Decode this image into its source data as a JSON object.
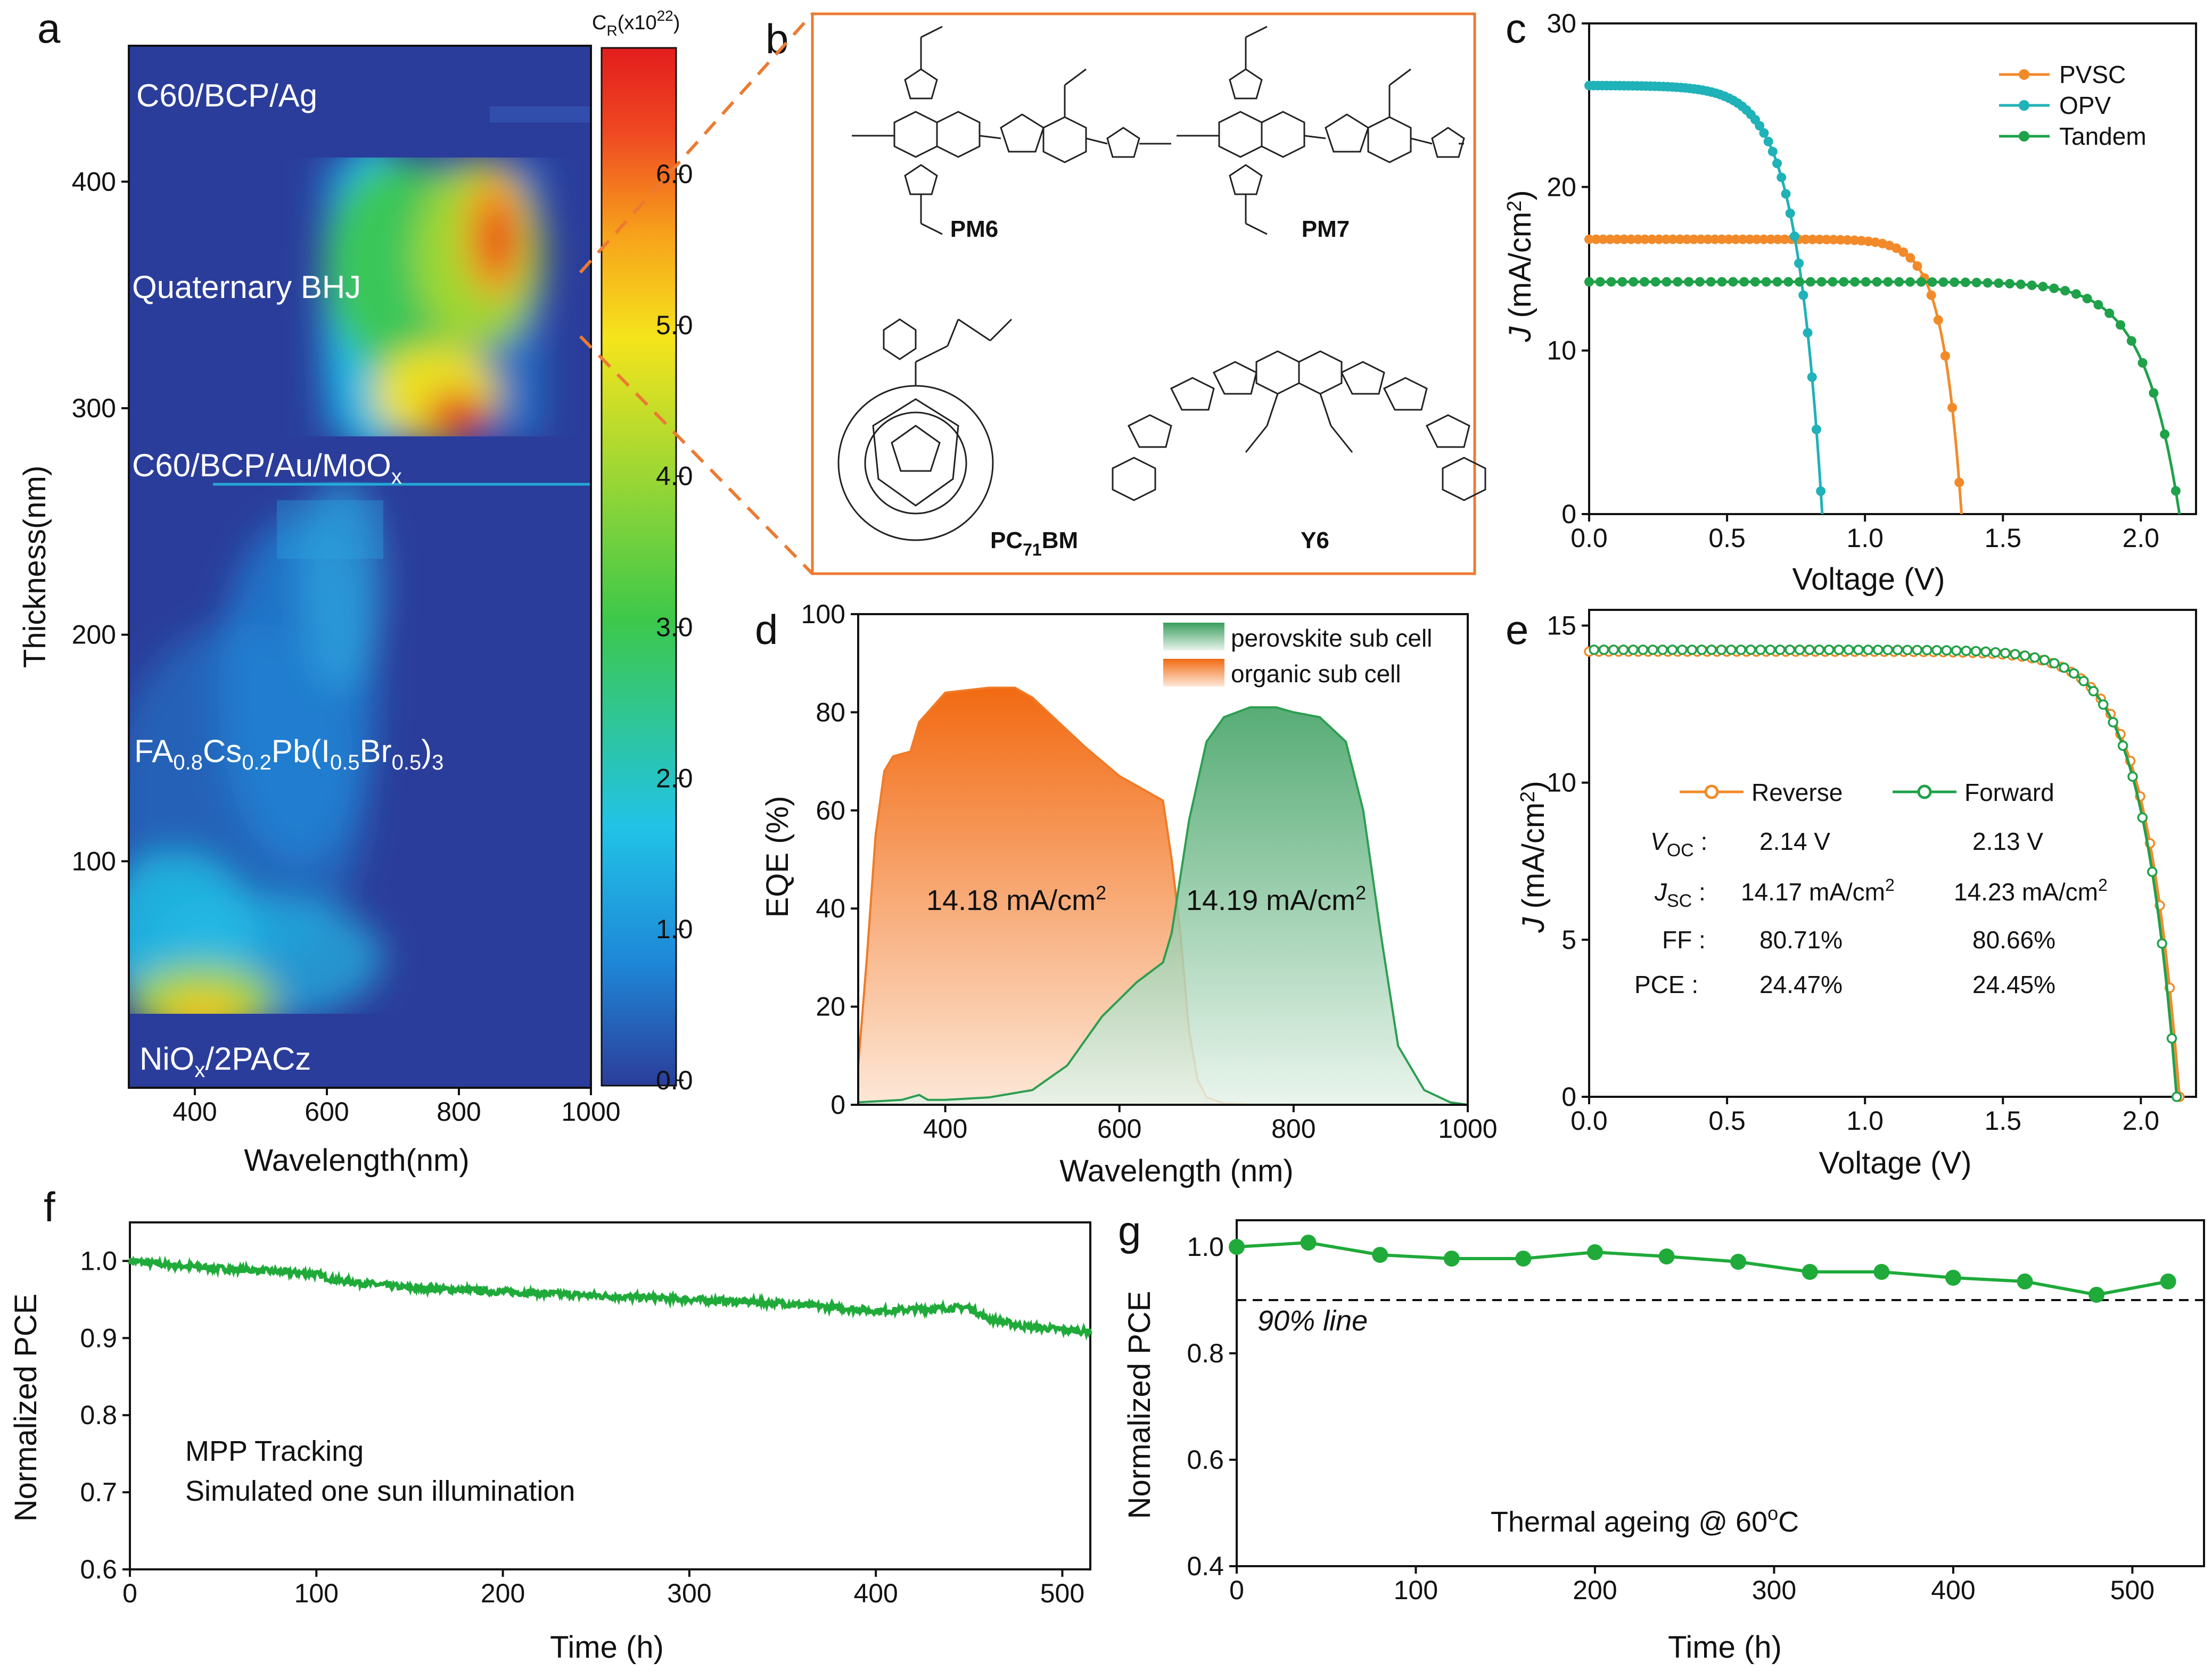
{
  "figure": {
    "panel_letters": [
      "a",
      "b",
      "c",
      "d",
      "e",
      "f",
      "g"
    ]
  },
  "chart_data": [
    {
      "id": "a",
      "type": "heatmap",
      "xlabel": "Wavelength(nm)",
      "ylabel": "Thickness(nm)",
      "xlim": [
        300,
        1000
      ],
      "ylim": [
        0,
        460
      ],
      "xticks": [
        400,
        600,
        800,
        1000
      ],
      "yticks": [
        100,
        200,
        300,
        400
      ],
      "colorbar": {
        "title_main": "C",
        "title_sub": "R",
        "title_unit": "(x10",
        "title_exp": "22",
        "title_end": ")",
        "range": [
          0,
          6.8
        ],
        "ticks": [
          "0.0",
          "1.0",
          "2.0",
          "3.0",
          "4.0",
          "5.0",
          "6.0"
        ],
        "colors": [
          "#2b3d9a",
          "#1e88d8",
          "#21c3e6",
          "#3dc84a",
          "#a4d832",
          "#f5e41c",
          "#f7a21b",
          "#ef4722",
          "#e31d1d"
        ]
      },
      "layers": [
        {
          "name": "C60/BCP/Ag",
          "range": [
            400,
            460
          ]
        },
        {
          "name": "Quaternary BHJ",
          "range": [
            282,
            400
          ]
        },
        {
          "name": "C60/BCP/Au/MoO",
          "sub": "x",
          "range": [
            250,
            282
          ]
        },
        {
          "name": "FA0.8Cs0.2Pb(I0.5Br0.5)3",
          "range": [
            30,
            250
          ]
        },
        {
          "name": "NiO",
          "sub": "x",
          "suffix": "/2PACz",
          "range": [
            0,
            30
          ]
        }
      ],
      "perovskite_label": {
        "p1": "FA",
        "s1": "0.8",
        "p2": "Cs",
        "s2": "0.2",
        "p3": "Pb(I",
        "s3": "0.5",
        "p4": "Br",
        "s4": "0.5",
        "p5": ")",
        "s5": "3"
      }
    },
    {
      "id": "c",
      "type": "line",
      "xlabel": "Voltage (V)",
      "ylabel_italic": "J",
      "ylabel_rest": " (mA/cm",
      "ylabel_sup": "2",
      "ylabel_end": ")",
      "xlim": [
        0,
        2.2
      ],
      "ylim": [
        0,
        30
      ],
      "xticks": [
        "0.0",
        "0.5",
        "1.0",
        "1.5",
        "2.0"
      ],
      "yticks": [
        "0",
        "10",
        "20",
        "30"
      ],
      "series": [
        {
          "name": "PVSC",
          "color": "#f28a2a",
          "jsc": 16.8,
          "voc": 1.35,
          "ff": 0.83
        },
        {
          "name": "OPV",
          "color": "#1fb2b8",
          "jsc": 26.2,
          "voc": 0.845,
          "ff": 0.74
        },
        {
          "name": "Tandem",
          "color": "#1fa14a",
          "jsc": 14.2,
          "voc": 2.14,
          "ff": 0.807
        }
      ]
    },
    {
      "id": "d",
      "type": "area",
      "xlabel": "Wavelength (nm)",
      "ylabel": "EQE (%)",
      "xlim": [
        300,
        1000
      ],
      "ylim": [
        0,
        100
      ],
      "xticks": [
        "400",
        "600",
        "800",
        "1000"
      ],
      "yticks": [
        "0",
        "20",
        "40",
        "60",
        "80",
        "100"
      ],
      "series": [
        {
          "name": "perovskite sub cell",
          "color": "#2d9e52",
          "x": [
            300,
            350,
            370,
            380,
            400,
            450,
            500,
            540,
            580,
            620,
            650,
            660,
            680,
            700,
            720,
            750,
            780,
            800,
            830,
            860,
            880,
            900,
            920,
            950,
            980,
            1000
          ],
          "y": [
            0.5,
            1,
            2,
            1,
            1,
            1.5,
            3,
            8,
            18,
            25,
            29,
            35,
            58,
            74,
            79,
            81,
            81,
            80,
            79,
            74,
            60,
            35,
            12,
            3,
            0.5,
            0
          ]
        },
        {
          "name": "organic sub cell",
          "color": "#f07a26",
          "x": [
            300,
            310,
            320,
            330,
            340,
            360,
            370,
            380,
            400,
            450,
            480,
            500,
            530,
            560,
            600,
            630,
            650,
            660,
            670,
            680,
            690,
            700,
            720,
            750,
            800,
            900,
            1000
          ],
          "y": [
            8,
            30,
            55,
            68,
            71,
            72,
            78,
            80,
            84,
            85,
            85,
            83,
            78,
            73,
            67,
            64,
            62,
            50,
            35,
            15,
            5,
            1.5,
            0.3,
            0,
            0,
            0,
            0
          ]
        }
      ],
      "annotations": [
        {
          "value": "14.18 mA/cm",
          "sup": "2"
        },
        {
          "value": "14.19 mA/cm",
          "sup": "2"
        }
      ]
    },
    {
      "id": "e",
      "type": "line",
      "xlabel": "Voltage (V)",
      "ylabel_italic": "J",
      "ylabel_rest": " (mA/cm",
      "ylabel_sup": "2",
      "ylabel_end": ")",
      "xlim": [
        0,
        2.2
      ],
      "ylim": [
        0,
        15.5
      ],
      "xticks": [
        "0.0",
        "0.5",
        "1.0",
        "1.5",
        "2.0"
      ],
      "yticks": [
        "0",
        "5",
        "10",
        "15"
      ],
      "series": [
        {
          "name": "Reverse",
          "color": "#f28a2a",
          "jsc": 14.17,
          "voc": 2.14,
          "ff": 0.8071
        },
        {
          "name": "Forward",
          "color": "#1fa14a",
          "jsc": 14.23,
          "voc": 2.13,
          "ff": 0.8066
        }
      ],
      "table": {
        "rows": [
          {
            "label_main": "V",
            "label_sub": "OC",
            "reverse": "2.14 V",
            "forward": "2.13 V"
          },
          {
            "label_main": "J",
            "label_sub": "SC",
            "reverse": "14.17 mA/cm",
            "reverse_sup": "2",
            "forward": "14.23 mA/cm",
            "forward_sup": "2"
          },
          {
            "label_main": "FF",
            "label_sub": "",
            "reverse": "80.71%",
            "forward": "80.66%"
          },
          {
            "label_main": "PCE",
            "label_sub": "",
            "reverse": "24.47%",
            "forward": "24.45%"
          }
        ]
      }
    },
    {
      "id": "f",
      "type": "line",
      "xlabel": "Time (h)",
      "ylabel": "Normalized PCE",
      "xlim": [
        0,
        515
      ],
      "ylim": [
        0.6,
        1.05
      ],
      "xticks": [
        "0",
        "100",
        "200",
        "300",
        "400",
        "500"
      ],
      "yticks": [
        "0.6",
        "0.7",
        "0.8",
        "0.9",
        "1.0"
      ],
      "series": [
        {
          "name": "MPP",
          "color": "#1faa3a",
          "x": [
            0,
            20,
            50,
            80,
            100,
            110,
            150,
            200,
            250,
            300,
            350,
            400,
            450,
            460,
            480,
            515
          ],
          "y": [
            1.0,
            0.995,
            0.99,
            0.986,
            0.983,
            0.975,
            0.965,
            0.96,
            0.955,
            0.95,
            0.945,
            0.935,
            0.94,
            0.925,
            0.915,
            0.908
          ]
        }
      ],
      "annotations": [
        "MPP Tracking",
        "Simulated one sun illumination"
      ]
    },
    {
      "id": "g",
      "type": "scatter",
      "xlabel": "Time (h)",
      "ylabel": "Normalized PCE",
      "xlim": [
        0,
        540
      ],
      "ylim": [
        0.4,
        1.05
      ],
      "xticks": [
        "0",
        "100",
        "200",
        "300",
        "400",
        "500"
      ],
      "yticks": [
        "0.4",
        "0.6",
        "0.8",
        "1.0"
      ],
      "series": [
        {
          "name": "Thermal",
          "color": "#1faa3a",
          "x": [
            0,
            40,
            80,
            120,
            160,
            200,
            240,
            280,
            320,
            360,
            400,
            440,
            480,
            520
          ],
          "y": [
            1.0,
            1.008,
            0.985,
            0.978,
            0.978,
            0.99,
            0.982,
            0.972,
            0.953,
            0.953,
            0.942,
            0.935,
            0.91,
            0.935
          ]
        }
      ],
      "reference_line": {
        "y": 0.9,
        "label": "90% line"
      },
      "annotation": {
        "text": "Thermal ageing @ 60",
        "sup": "o",
        "end": "C"
      }
    }
  ],
  "molecules": [
    {
      "name": "PM6"
    },
    {
      "name": "PM7"
    },
    {
      "name": "PC",
      "sub": "71",
      "suffix": "BM"
    },
    {
      "name": "Y6"
    }
  ]
}
